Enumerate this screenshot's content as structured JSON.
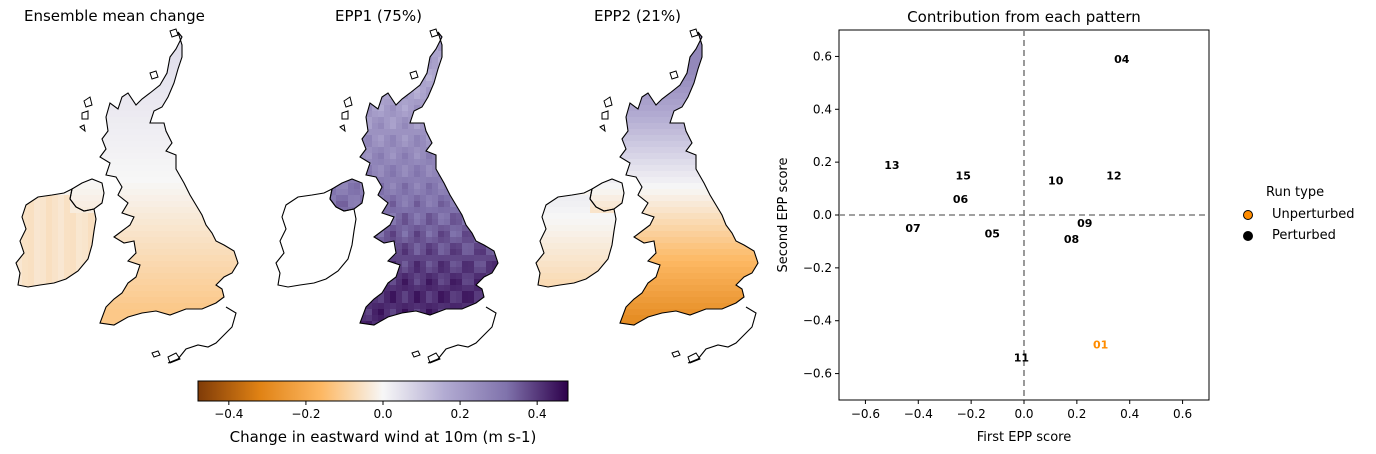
{
  "maps": [
    {
      "title": "Ensemble mean change",
      "pattern": "mean"
    },
    {
      "title": "EPP1 (75%)",
      "pattern": "epp1"
    },
    {
      "title": "EPP2 (21%)",
      "pattern": "epp2"
    }
  ],
  "colorbar": {
    "label": "Change in eastward wind at 10m (m s-1)",
    "range": [
      -0.48,
      0.48
    ],
    "ticks": [
      "−0.4",
      "−0.2",
      "0.0",
      "0.2",
      "0.4"
    ],
    "tick_values": [
      -0.4,
      -0.2,
      0.0,
      0.2,
      0.4
    ],
    "colormap": "PuOr",
    "colors": [
      "#7f3b08",
      "#e08214",
      "#fdb863",
      "#f7f7f7",
      "#b2abd2",
      "#8073ac",
      "#2d004b"
    ]
  },
  "chart_data": {
    "type": "scatter",
    "title": "Contribution from each pattern",
    "xlabel": "First EPP score",
    "ylabel": "Second EPP score",
    "xlim": [
      -0.7,
      0.7
    ],
    "ylim": [
      -0.7,
      0.7
    ],
    "xticks": [
      "−0.6",
      "−0.4",
      "−0.2",
      "0.0",
      "0.2",
      "0.4",
      "0.6"
    ],
    "yticks": [
      "−0.6",
      "−0.4",
      "−0.2",
      "0.0",
      "0.2",
      "0.4",
      "0.6"
    ],
    "tick_values": [
      -0.6,
      -0.4,
      -0.2,
      0.0,
      0.2,
      0.4,
      0.6
    ],
    "reference_lines": {
      "x": 0,
      "y": 0,
      "style": "dashed",
      "color": "#808080"
    },
    "points": [
      {
        "label": "01",
        "x": 0.29,
        "y": -0.49,
        "type": "Unperturbed"
      },
      {
        "label": "04",
        "x": 0.37,
        "y": 0.59,
        "type": "Perturbed"
      },
      {
        "label": "05",
        "x": -0.12,
        "y": -0.07,
        "type": "Perturbed"
      },
      {
        "label": "06",
        "x": -0.24,
        "y": 0.06,
        "type": "Perturbed"
      },
      {
        "label": "07",
        "x": -0.42,
        "y": -0.05,
        "type": "Perturbed"
      },
      {
        "label": "08",
        "x": 0.18,
        "y": -0.09,
        "type": "Perturbed"
      },
      {
        "label": "09",
        "x": 0.23,
        "y": -0.03,
        "type": "Perturbed"
      },
      {
        "label": "10",
        "x": 0.12,
        "y": 0.13,
        "type": "Perturbed"
      },
      {
        "label": "11",
        "x": -0.01,
        "y": -0.54,
        "type": "Perturbed"
      },
      {
        "label": "12",
        "x": 0.34,
        "y": 0.15,
        "type": "Perturbed"
      },
      {
        "label": "13",
        "x": -0.5,
        "y": 0.19,
        "type": "Perturbed"
      },
      {
        "label": "15",
        "x": -0.23,
        "y": 0.15,
        "type": "Perturbed"
      }
    ],
    "legend": {
      "title": "Run type",
      "placement": "outside-right",
      "entries": [
        {
          "label": "Unperturbed",
          "color": "#ff8c00"
        },
        {
          "label": "Perturbed",
          "color": "#000000"
        }
      ]
    }
  }
}
